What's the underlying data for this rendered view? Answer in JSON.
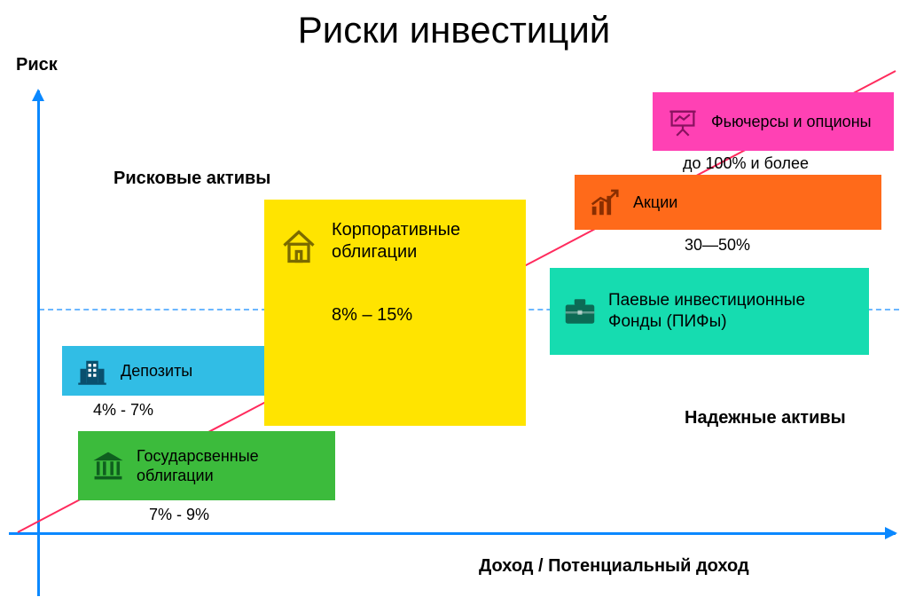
{
  "chart": {
    "type": "infographic",
    "title": "Риски инвестиций",
    "y_axis_label": "Риск",
    "x_axis_label": "Доход / Потенциальный доход",
    "background_color": "#ffffff",
    "axis_color": "#0a88ff",
    "midline_color": "#0a88ff",
    "trend_color": "#ff2b5d",
    "trend_from": [
      20,
      600
    ],
    "trend_to": [
      1010,
      80
    ],
    "title_fontsize": 42,
    "label_fontsize": 20,
    "caption_fontsize": 18
  },
  "regions": {
    "risky": "Рисковые активы",
    "safe": "Надежные активы"
  },
  "items": {
    "deposits": {
      "label": "Депозиты",
      "range": "4% - 7%",
      "bg": "#31bde5",
      "icon_color": "#09506e",
      "icon": "building"
    },
    "govbonds": {
      "label": "Государсвенные облигации",
      "range": "7% - 9%",
      "bg": "#3cbb3c",
      "icon_color": "#0f5f1f",
      "icon": "institution"
    },
    "corp": {
      "label": "Корпоративные облигации",
      "range": "8% – 15%",
      "bg": "#ffe400",
      "icon_color": "#7a6a00",
      "icon": "house"
    },
    "pif": {
      "label": "Паевые инвестиционные Фонды (ПИФы)",
      "range": "",
      "bg": "#16dcb0",
      "icon_color": "#0c6b55",
      "icon": "briefcase"
    },
    "stocks": {
      "label": "Акции",
      "range": "30—50%",
      "bg": "#ff6a1a",
      "icon_color": "#8a2e00",
      "icon": "growth"
    },
    "futures": {
      "label": "Фьючерсы и опционы",
      "range": "до 100% и более",
      "bg": "#ff41b4",
      "icon_color": "#8a1260",
      "icon": "presentation"
    }
  }
}
